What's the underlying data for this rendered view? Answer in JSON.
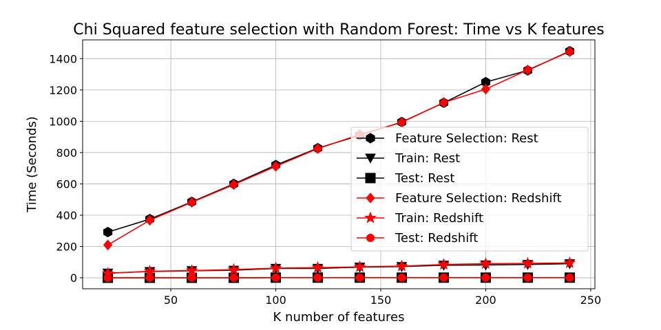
{
  "chart_data": {
    "type": "line",
    "title": "Chi Squared feature selection with Random Forest: Time vs K features",
    "xlabel": "K number of features",
    "ylabel": "Time (Seconds)",
    "xlim": [
      8,
      252
    ],
    "ylim": [
      -70,
      1520
    ],
    "xticks": [
      50,
      100,
      150,
      200,
      250
    ],
    "yticks": [
      0,
      200,
      400,
      600,
      800,
      1000,
      1200,
      1400
    ],
    "grid": true,
    "legend_position": "center-right",
    "x": [
      20,
      40,
      60,
      80,
      100,
      120,
      140,
      160,
      180,
      200,
      220,
      240
    ],
    "series": [
      {
        "name": "Feature Selection: Rest",
        "color": "#000000",
        "marker": "hexagon",
        "values": [
          292,
          375,
          485,
          600,
          720,
          828,
          910,
          995,
          1118,
          1250,
          1325,
          1448
        ]
      },
      {
        "name": "Train: Rest",
        "color": "#000000",
        "marker": "triangle-down",
        "values": [
          30,
          40,
          45,
          48,
          60,
          60,
          68,
          72,
          80,
          82,
          85,
          90
        ]
      },
      {
        "name": "Test: Rest",
        "color": "#000000",
        "marker": "square",
        "values": [
          0,
          0,
          0,
          0,
          1,
          1,
          1,
          1,
          1,
          1,
          1,
          1
        ]
      },
      {
        "name": "Feature Selection: Redshift",
        "color": "#ff0000",
        "marker": "diamond",
        "values": [
          210,
          368,
          482,
          595,
          712,
          825,
          915,
          993,
          1120,
          1205,
          1328,
          1445
        ]
      },
      {
        "name": "Train: Redshift",
        "color": "#ff0000",
        "marker": "star",
        "values": [
          28,
          42,
          46,
          52,
          62,
          65,
          70,
          75,
          85,
          90,
          92,
          95
        ]
      },
      {
        "name": "Test: Redshift",
        "color": "#ff0000",
        "marker": "circle",
        "values": [
          0,
          0,
          0,
          0,
          1,
          1,
          1,
          1,
          1,
          1,
          1,
          1
        ]
      }
    ]
  }
}
